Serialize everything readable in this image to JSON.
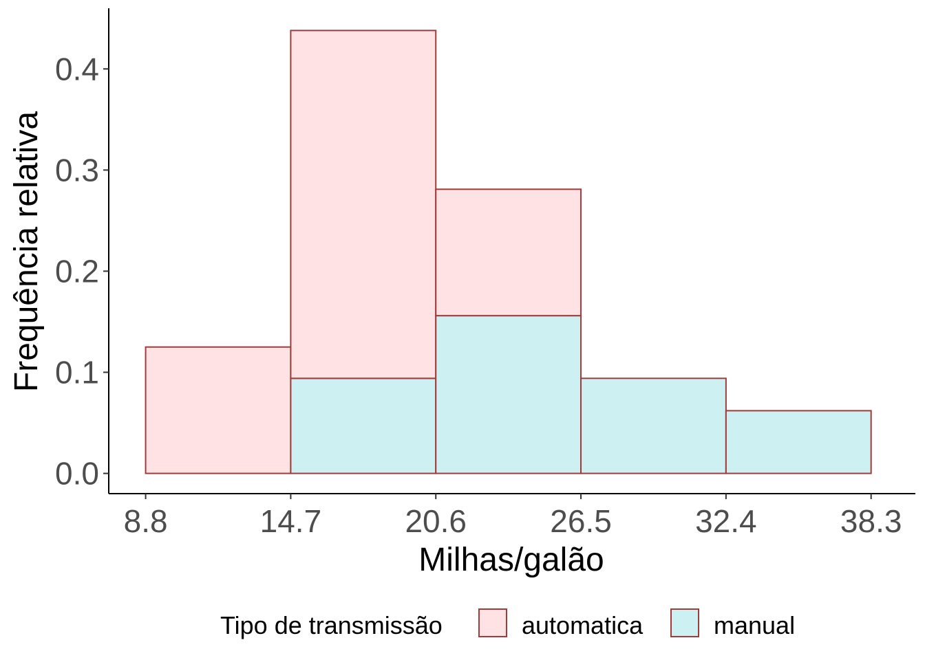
{
  "chart_data": {
    "type": "bar",
    "stacked": true,
    "xlabel": "Milhas/galão",
    "ylabel": "Frequência relativa",
    "x_breaks": [
      8.8,
      14.7,
      20.6,
      26.5,
      32.4,
      38.3
    ],
    "x_tick_labels": [
      "8.8",
      "14.7",
      "20.6",
      "26.5",
      "32.4",
      "38.3"
    ],
    "xlim": [
      7.3,
      40.1
    ],
    "y_ticks": [
      0.0,
      0.1,
      0.2,
      0.3,
      0.4
    ],
    "y_tick_labels": [
      "0.0",
      "0.1",
      "0.2",
      "0.3",
      "0.4"
    ],
    "ylim": [
      -0.02,
      0.46
    ],
    "grid": false,
    "legend": {
      "title": "Tipo de transmissão",
      "position": "bottom"
    },
    "series": [
      {
        "name": "automatica",
        "color": "#FFE2E3",
        "values": [
          0.125,
          0.344,
          0.125,
          0.0,
          0.0
        ]
      },
      {
        "name": "manual",
        "color": "#CDF0F2",
        "values": [
          0.0,
          0.094,
          0.156,
          0.094,
          0.062
        ]
      }
    ],
    "bar_outline_color": "#A33A3A"
  }
}
